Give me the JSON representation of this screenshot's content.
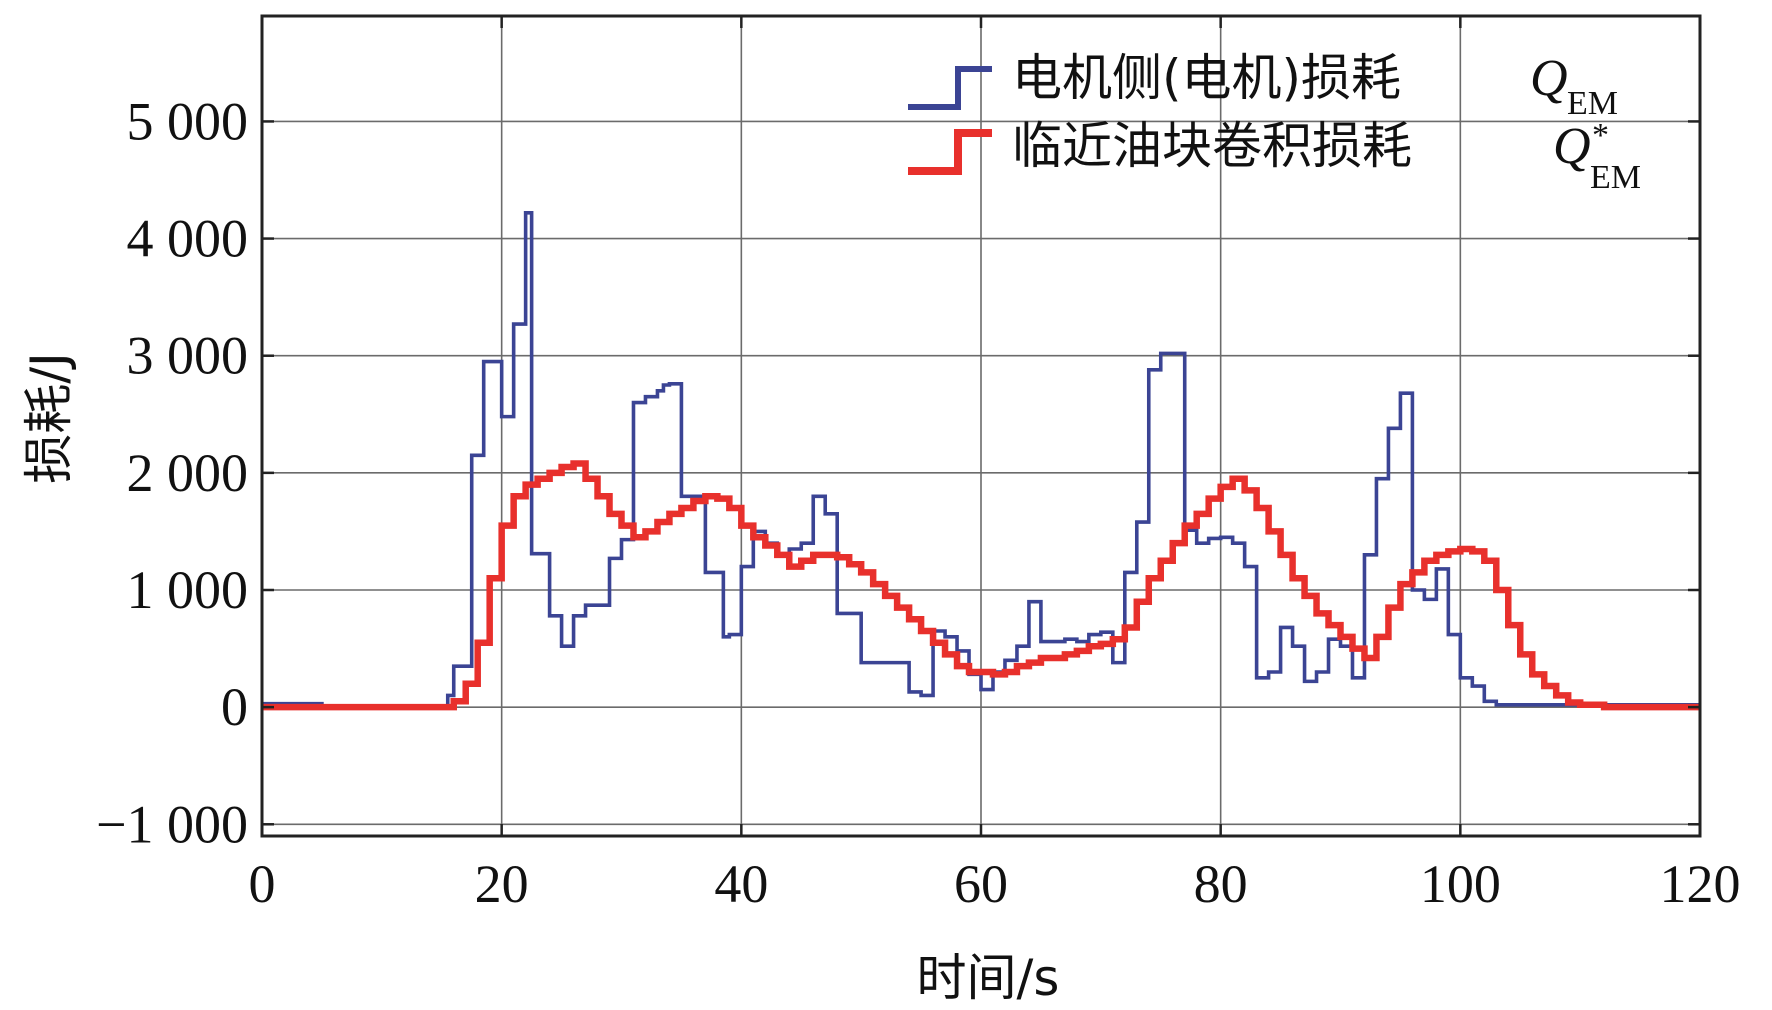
{
  "chart_data": {
    "type": "line",
    "step": true,
    "xlabel": "时间/s",
    "ylabel": "损耗/J",
    "xlim": [
      0,
      120
    ],
    "ylim": [
      -1100,
      5900
    ],
    "xticks": [
      0,
      20,
      40,
      60,
      80,
      100,
      120
    ],
    "yticks": [
      -1000,
      0,
      1000,
      2000,
      3000,
      4000,
      5000
    ],
    "xtick_labels": [
      "0",
      "20",
      "40",
      "60",
      "80",
      "100",
      "120"
    ],
    "ytick_labels": [
      "−1 000",
      "0",
      "1 000",
      "2 000",
      "3 000",
      "4 000",
      "5 000"
    ],
    "grid": true,
    "legend_position": "top-right",
    "series": [
      {
        "name": "电机侧(电机)损耗",
        "symbol": "Q",
        "subscript": "EM",
        "superscript": "",
        "color": "#3b4494",
        "x": [
          0,
          5,
          15,
          15.5,
          16,
          17,
          17.5,
          18.5,
          19.5,
          20,
          20.5,
          21,
          22,
          22.5,
          23.5,
          24,
          25,
          26,
          27,
          28,
          29,
          30,
          31,
          32,
          33,
          33.5,
          34,
          35,
          37,
          38,
          38.5,
          39,
          40,
          41,
          42,
          43,
          44,
          45,
          46,
          47,
          48,
          49,
          50,
          52,
          53,
          54,
          55,
          56,
          57,
          58,
          59,
          60,
          61,
          62,
          63,
          64,
          65,
          66,
          67,
          68,
          69,
          70,
          71,
          72,
          73,
          74,
          75,
          76,
          77,
          78,
          79,
          80,
          81,
          82,
          83,
          84,
          85,
          86,
          87,
          88,
          89,
          90,
          91,
          92,
          93,
          94,
          95,
          96,
          97,
          98,
          99,
          100,
          101,
          102,
          103,
          104,
          110,
          120
        ],
        "y": [
          30,
          0,
          0,
          100,
          350,
          350,
          2150,
          2950,
          2950,
          2480,
          2480,
          3270,
          4220,
          1310,
          1310,
          780,
          520,
          780,
          870,
          870,
          1270,
          1430,
          2600,
          2650,
          2700,
          2750,
          2760,
          1800,
          1150,
          1150,
          600,
          620,
          1200,
          1500,
          1400,
          1300,
          1350,
          1400,
          1800,
          1650,
          800,
          800,
          380,
          380,
          380,
          130,
          100,
          650,
          600,
          480,
          280,
          150,
          300,
          400,
          520,
          900,
          560,
          560,
          580,
          560,
          620,
          640,
          380,
          1150,
          1580,
          2880,
          3020,
          3020,
          1510,
          1400,
          1440,
          1450,
          1400,
          1200,
          250,
          300,
          680,
          520,
          220,
          300,
          580,
          520,
          250,
          1300,
          1950,
          2380,
          2680,
          1000,
          920,
          1180,
          620,
          250,
          180,
          50,
          20,
          20,
          20,
          20
        ]
      },
      {
        "name": "临近油块卷积损耗",
        "symbol": "Q",
        "subscript": "EM",
        "superscript": "*",
        "color": "#e8302c",
        "x": [
          0,
          5,
          10,
          16,
          17,
          18,
          19,
          20,
          21,
          22,
          23,
          24,
          25,
          26,
          27,
          28,
          29,
          30,
          31,
          32,
          33,
          34,
          35,
          36,
          37,
          38,
          39,
          40,
          41,
          42,
          43,
          44,
          45,
          46,
          47,
          48,
          49,
          50,
          51,
          52,
          53,
          54,
          55,
          56,
          57,
          58,
          59,
          60,
          61,
          62,
          63,
          64,
          65,
          66,
          67,
          68,
          69,
          70,
          71,
          72,
          73,
          74,
          75,
          76,
          77,
          78,
          79,
          80,
          81,
          82,
          83,
          84,
          85,
          86,
          87,
          88,
          89,
          90,
          91,
          92,
          93,
          94,
          95,
          96,
          97,
          98,
          99,
          100,
          101,
          102,
          103,
          104,
          105,
          106,
          107,
          108,
          109,
          110,
          112,
          115,
          120
        ],
        "y": [
          0,
          0,
          0,
          50,
          200,
          550,
          1100,
          1550,
          1800,
          1900,
          1950,
          2000,
          2050,
          2080,
          1950,
          1800,
          1650,
          1550,
          1450,
          1500,
          1580,
          1650,
          1700,
          1760,
          1800,
          1780,
          1700,
          1550,
          1450,
          1380,
          1300,
          1200,
          1250,
          1300,
          1300,
          1280,
          1220,
          1150,
          1050,
          950,
          850,
          750,
          650,
          550,
          450,
          350,
          300,
          300,
          280,
          300,
          350,
          380,
          420,
          420,
          450,
          480,
          520,
          540,
          580,
          680,
          900,
          1100,
          1250,
          1400,
          1550,
          1650,
          1780,
          1880,
          1950,
          1850,
          1700,
          1500,
          1300,
          1100,
          950,
          800,
          700,
          600,
          500,
          420,
          600,
          850,
          1050,
          1150,
          1250,
          1300,
          1330,
          1350,
          1330,
          1250,
          1000,
          700,
          450,
          280,
          180,
          100,
          40,
          20,
          0,
          0,
          0
        ]
      }
    ]
  }
}
